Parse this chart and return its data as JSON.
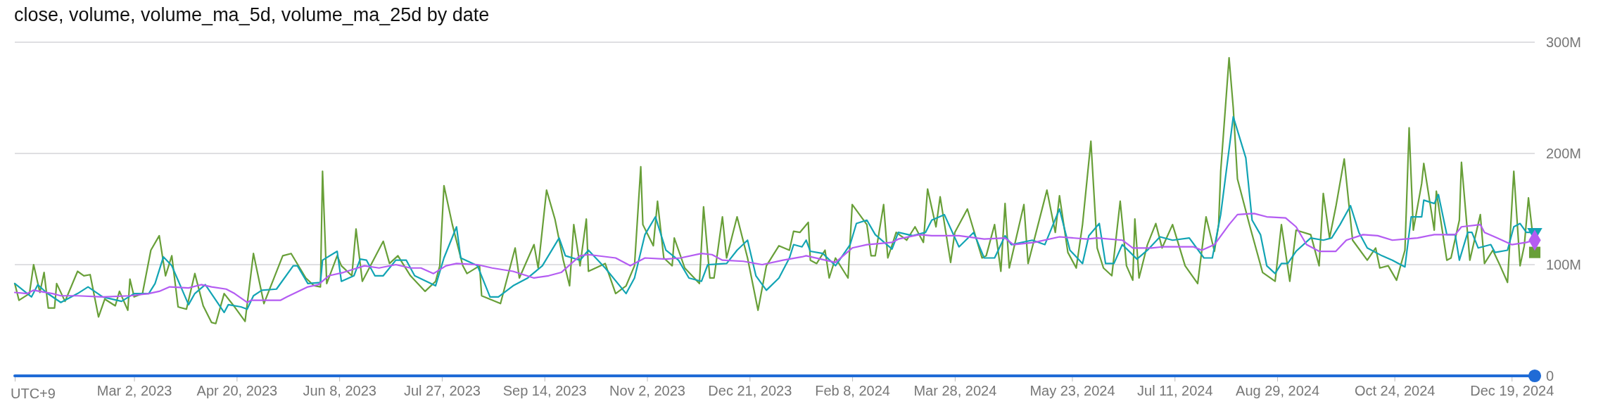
{
  "chart_data": {
    "type": "line",
    "title": "close, volume, volume_ma_5d, volume_ma_25d by date",
    "annotations": [
      "UTC+9"
    ],
    "xlim": [
      "2023-01-04",
      "2024-12-30"
    ],
    "xticks": [
      {
        "value": "2023-03-02",
        "label": "Mar 2, 2023"
      },
      {
        "value": "2023-04-20",
        "label": "Apr 20, 2023"
      },
      {
        "value": "2023-06-08",
        "label": "Jun 8, 2023"
      },
      {
        "value": "2023-07-27",
        "label": "Jul 27, 2023"
      },
      {
        "value": "2023-09-14",
        "label": "Sep 14, 2023"
      },
      {
        "value": "2023-11-02",
        "label": "Nov 2, 2023"
      },
      {
        "value": "2023-12-21",
        "label": "Dec 21, 2023"
      },
      {
        "value": "2024-02-08",
        "label": "Feb 8, 2024"
      },
      {
        "value": "2024-03-28",
        "label": "Mar 28, 2024"
      },
      {
        "value": "2024-05-23",
        "label": "May 23, 2024"
      },
      {
        "value": "2024-07-11",
        "label": "Jul 11, 2024"
      },
      {
        "value": "2024-08-29",
        "label": "Aug 29, 2024"
      },
      {
        "value": "2024-10-24",
        "label": "Oct 24, 2024"
      },
      {
        "value": "2024-12-19",
        "label": "Dec 19, 2024"
      }
    ],
    "ylim": [
      0,
      300
    ],
    "yticks": [
      0,
      {
        "value": 100,
        "label": "100M"
      },
      {
        "value": 200,
        "label": "200M"
      },
      {
        "value": 300,
        "label": "300M"
      }
    ],
    "grid": "y",
    "legend": false,
    "series": [
      {
        "color": "#689f38",
        "x": [
          "2023-01-04",
          "2023-01-06",
          "2023-01-11",
          "2023-01-13",
          "2023-01-16",
          "2023-01-18",
          "2023-01-20",
          "2023-01-23",
          "2023-01-24",
          "2023-01-28",
          "2023-02-03",
          "2023-02-06",
          "2023-02-09",
          "2023-02-13",
          "2023-02-16",
          "2023-02-21",
          "2023-02-23",
          "2023-02-27",
          "2023-02-28",
          "2023-03-02",
          "2023-03-06",
          "2023-03-10",
          "2023-03-14",
          "2023-03-17",
          "2023-03-20",
          "2023-03-23",
          "2023-03-27",
          "2023-03-31",
          "2023-04-04",
          "2023-04-08",
          "2023-04-10",
          "2023-04-14",
          "2023-04-19",
          "2023-04-24",
          "2023-04-28",
          "2023-05-03",
          "2023-05-12",
          "2023-05-16",
          "2023-05-23",
          "2023-05-27",
          "2023-05-30",
          "2023-05-31",
          "2023-06-02",
          "2023-06-07",
          "2023-06-09",
          "2023-06-14",
          "2023-06-16",
          "2023-06-19",
          "2023-06-29",
          "2023-07-02",
          "2023-07-06",
          "2023-07-12",
          "2023-07-19",
          "2023-07-24",
          "2023-07-26",
          "2023-07-28",
          "2023-08-01",
          "2023-08-06",
          "2023-08-08",
          "2023-08-14",
          "2023-08-15",
          "2023-08-24",
          "2023-08-31",
          "2023-09-02",
          "2023-09-09",
          "2023-09-11",
          "2023-09-15",
          "2023-09-19",
          "2023-09-23",
          "2023-09-26",
          "2023-09-28",
          "2023-10-01",
          "2023-10-04",
          "2023-10-05",
          "2023-10-13",
          "2023-10-18",
          "2023-10-23",
          "2023-10-27",
          "2023-10-30",
          "2023-10-31",
          "2023-11-05",
          "2023-11-07",
          "2023-11-10",
          "2023-11-14",
          "2023-11-15",
          "2023-11-20",
          "2023-11-27",
          "2023-11-29",
          "2023-12-02",
          "2023-12-04",
          "2023-12-08",
          "2023-12-10",
          "2023-12-15",
          "2023-12-20",
          "2023-12-25",
          "2023-12-29",
          "2024-01-04",
          "2024-01-09",
          "2024-01-11",
          "2024-01-14",
          "2024-01-18",
          "2024-01-19",
          "2024-01-22",
          "2024-01-26",
          "2024-01-28",
          "2024-01-31",
          "2024-02-06",
          "2024-02-08",
          "2024-02-15",
          "2024-02-17",
          "2024-02-19",
          "2024-02-23",
          "2024-02-25",
          "2024-02-29",
          "2024-03-05",
          "2024-03-09",
          "2024-03-13",
          "2024-03-15",
          "2024-03-19",
          "2024-03-21",
          "2024-03-26",
          "2024-03-28",
          "2024-04-03",
          "2024-04-10",
          "2024-04-12",
          "2024-04-16",
          "2024-04-19",
          "2024-04-21",
          "2024-04-23",
          "2024-04-30",
          "2024-05-02",
          "2024-05-11",
          "2024-05-15",
          "2024-05-17",
          "2024-05-21",
          "2024-05-25",
          "2024-05-28",
          "2024-06-01",
          "2024-06-04",
          "2024-06-07",
          "2024-06-11",
          "2024-06-15",
          "2024-06-18",
          "2024-06-21",
          "2024-06-22",
          "2024-06-24",
          "2024-06-28",
          "2024-07-02",
          "2024-07-05",
          "2024-07-10",
          "2024-07-16",
          "2024-07-22",
          "2024-07-26",
          "2024-07-30",
          "2024-08-01",
          "2024-08-02",
          "2024-08-06",
          "2024-08-08",
          "2024-08-10",
          "2024-08-16",
          "2024-08-22",
          "2024-08-28",
          "2024-08-31",
          "2024-09-04",
          "2024-09-07",
          "2024-09-14",
          "2024-09-18",
          "2024-09-20",
          "2024-09-23",
          "2024-09-26",
          "2024-09-30",
          "2024-10-04",
          "2024-10-11",
          "2024-10-15",
          "2024-10-17",
          "2024-10-21",
          "2024-10-25",
          "2024-10-29",
          "2024-10-31",
          "2024-11-02",
          "2024-11-06",
          "2024-11-07",
          "2024-11-12",
          "2024-11-13",
          "2024-11-18",
          "2024-11-20",
          "2024-11-24",
          "2024-11-25",
          "2024-11-29",
          "2024-12-04",
          "2024-12-06",
          "2024-12-10",
          "2024-12-13",
          "2024-12-17",
          "2024-12-20",
          "2024-12-23",
          "2024-12-25",
          "2024-12-27",
          "2024-12-30"
        ],
        "values": [
          83,
          68,
          74,
          100,
          75,
          93,
          61,
          61,
          83,
          67,
          94,
          90,
          91,
          53,
          69,
          63,
          76,
          59,
          87,
          71,
          74,
          113,
          126,
          90,
          108,
          62,
          60,
          92,
          63,
          48,
          47,
          74,
          62,
          49,
          110,
          65,
          108,
          110,
          88,
          81,
          80,
          184,
          83,
          108,
          99,
          90,
          132,
          85,
          121,
          101,
          108,
          90,
          76,
          85,
          99,
          171,
          136,
          99,
          92,
          99,
          72,
          65,
          115,
          88,
          118,
          97,
          167,
          141,
          104,
          81,
          136,
          99,
          141,
          94,
          101,
          74,
          81,
          99,
          188,
          136,
          117,
          157,
          106,
          99,
          124,
          97,
          83,
          152,
          88,
          88,
          143,
          106,
          143,
          106,
          59,
          99,
          117,
          113,
          130,
          129,
          138,
          104,
          101,
          113,
          88,
          106,
          88,
          154,
          136,
          108,
          108,
          154,
          106,
          129,
          122,
          134,
          120,
          168,
          134,
          161,
          102,
          129,
          150,
          106,
          108,
          136,
          94,
          155,
          97,
          154,
          101,
          167,
          129,
          162,
          111,
          97,
          136,
          211,
          115,
          97,
          90,
          157,
          99,
          86,
          141,
          88,
          118,
          137,
          115,
          136,
          99,
          83,
          143,
          112,
          136,
          184,
          286,
          241,
          177,
          134,
          93,
          85,
          136,
          85,
          131,
          127,
          99,
          164,
          124,
          152,
          195,
          122,
          104,
          115,
          97,
          99,
          86,
          113,
          223,
          131,
          173,
          191,
          131,
          166,
          104,
          106,
          140,
          192,
          104,
          145,
          101,
          113,
          101,
          84,
          184,
          99,
          117,
          160,
          111
        ]
      },
      {
        "color": "#12a4b4",
        "x": [
          "2023-01-04",
          "2023-01-12",
          "2023-01-15",
          "2023-01-19",
          "2023-01-26",
          "2023-02-03",
          "2023-02-08",
          "2023-02-15",
          "2023-02-24",
          "2023-03-02",
          "2023-03-09",
          "2023-03-12",
          "2023-03-16",
          "2023-03-20",
          "2023-03-28",
          "2023-03-31",
          "2023-04-05",
          "2023-04-14",
          "2023-04-16",
          "2023-04-22",
          "2023-04-25",
          "2023-04-28",
          "2023-05-02",
          "2023-05-09",
          "2023-05-17",
          "2023-05-19",
          "2023-05-24",
          "2023-05-30",
          "2023-05-31",
          "2023-06-07",
          "2023-06-09",
          "2023-06-15",
          "2023-06-18",
          "2023-06-21",
          "2023-06-25",
          "2023-06-29",
          "2023-07-05",
          "2023-07-10",
          "2023-07-14",
          "2023-07-24",
          "2023-07-28",
          "2023-08-03",
          "2023-08-05",
          "2023-08-13",
          "2023-08-19",
          "2023-08-23",
          "2023-08-30",
          "2023-09-06",
          "2023-09-13",
          "2023-09-21",
          "2023-09-24",
          "2023-10-01",
          "2023-10-05",
          "2023-10-13",
          "2023-10-23",
          "2023-10-27",
          "2023-11-01",
          "2023-11-06",
          "2023-11-11",
          "2023-11-17",
          "2023-11-22",
          "2023-11-28",
          "2023-12-01",
          "2023-12-10",
          "2023-12-15",
          "2023-12-20",
          "2023-12-24",
          "2023-12-29",
          "2024-01-04",
          "2024-01-09",
          "2024-01-11",
          "2024-01-15",
          "2024-01-17",
          "2024-01-19",
          "2024-01-25",
          "2024-01-31",
          "2024-02-07",
          "2024-02-10",
          "2024-02-15",
          "2024-02-19",
          "2024-02-27",
          "2024-03-01",
          "2024-03-08",
          "2024-03-14",
          "2024-03-17",
          "2024-03-23",
          "2024-03-30",
          "2024-04-06",
          "2024-04-11",
          "2024-04-16",
          "2024-04-21",
          "2024-04-24",
          "2024-05-04",
          "2024-05-10",
          "2024-05-17",
          "2024-05-22",
          "2024-05-28",
          "2024-05-31",
          "2024-06-05",
          "2024-06-08",
          "2024-06-12",
          "2024-06-16",
          "2024-06-23",
          "2024-06-28",
          "2024-07-04",
          "2024-07-10",
          "2024-07-18",
          "2024-07-25",
          "2024-07-29",
          "2024-08-02",
          "2024-08-08",
          "2024-08-14",
          "2024-08-17",
          "2024-08-21",
          "2024-08-24",
          "2024-08-28",
          "2024-08-31",
          "2024-09-03",
          "2024-09-07",
          "2024-09-14",
          "2024-09-20",
          "2024-09-24",
          "2024-09-28",
          "2024-10-03",
          "2024-10-07",
          "2024-10-11",
          "2024-10-18",
          "2024-10-23",
          "2024-10-29",
          "2024-11-01",
          "2024-11-06",
          "2024-11-07",
          "2024-11-12",
          "2024-11-14",
          "2024-11-18",
          "2024-11-22",
          "2024-11-24",
          "2024-11-28",
          "2024-11-30",
          "2024-12-03",
          "2024-12-09",
          "2024-12-11",
          "2024-12-17",
          "2024-12-20",
          "2024-12-23",
          "2024-12-26",
          "2024-12-30"
        ],
        "values": [
          83,
          71,
          82,
          75,
          66,
          74,
          80,
          71,
          67,
          74,
          74,
          83,
          107,
          99,
          64,
          74,
          82,
          57,
          64,
          62,
          60,
          72,
          77,
          78,
          99,
          99,
          83,
          84,
          104,
          112,
          85,
          90,
          105,
          104,
          90,
          90,
          104,
          104,
          90,
          81,
          106,
          134,
          106,
          99,
          71,
          71,
          81,
          88,
          99,
          124,
          108,
          104,
          113,
          97,
          74,
          88,
          127,
          143,
          113,
          104,
          88,
          85,
          100,
          101,
          113,
          122,
          90,
          77,
          88,
          106,
          118,
          116,
          122,
          112,
          110,
          99,
          118,
          137,
          140,
          127,
          114,
          129,
          126,
          129,
          140,
          145,
          116,
          129,
          106,
          106,
          126,
          118,
          122,
          118,
          150,
          113,
          101,
          126,
          137,
          101,
          101,
          118,
          105,
          113,
          125,
          122,
          124,
          106,
          106,
          145,
          233,
          196,
          140,
          127,
          99,
          92,
          101,
          101,
          112,
          124,
          122,
          124,
          136,
          153,
          129,
          115,
          108,
          104,
          98,
          143,
          143,
          158,
          155,
          163,
          127,
          127,
          104,
          129,
          129,
          115,
          118,
          111,
          113,
          134,
          137,
          129,
          129
        ]
      },
      {
        "color": "#b45cf2",
        "x": [
          "2023-01-04",
          "2023-01-10",
          "2023-01-13",
          "2023-01-22",
          "2023-01-26",
          "2023-02-03",
          "2023-02-15",
          "2023-02-28",
          "2023-03-09",
          "2023-03-14",
          "2023-03-19",
          "2023-03-28",
          "2023-04-03",
          "2023-04-08",
          "2023-04-15",
          "2023-04-19",
          "2023-04-25",
          "2023-04-27",
          "2023-05-11",
          "2023-05-14",
          "2023-05-24",
          "2023-05-29",
          "2023-06-03",
          "2023-06-10",
          "2023-06-20",
          "2023-06-27",
          "2023-07-05",
          "2023-07-12",
          "2023-07-17",
          "2023-07-23",
          "2023-07-29",
          "2023-08-03",
          "2023-08-13",
          "2023-08-20",
          "2023-08-30",
          "2023-09-09",
          "2023-09-16",
          "2023-09-22",
          "2023-10-01",
          "2023-10-05",
          "2023-10-18",
          "2023-10-25",
          "2023-11-01",
          "2023-11-11",
          "2023-11-18",
          "2023-11-28",
          "2023-12-03",
          "2023-12-08",
          "2023-12-18",
          "2023-12-27",
          "2024-01-06",
          "2024-01-15",
          "2024-01-17",
          "2024-01-24",
          "2024-01-31",
          "2024-02-08",
          "2024-02-15",
          "2024-02-27",
          "2024-03-01",
          "2024-03-11",
          "2024-03-17",
          "2024-03-30",
          "2024-04-11",
          "2024-04-21",
          "2024-04-25",
          "2024-05-05",
          "2024-05-17",
          "2024-05-30",
          "2024-06-04",
          "2024-06-16",
          "2024-06-21",
          "2024-06-30",
          "2024-07-05",
          "2024-07-20",
          "2024-07-24",
          "2024-07-30",
          "2024-08-06",
          "2024-08-10",
          "2024-08-18",
          "2024-08-24",
          "2024-09-02",
          "2024-09-07",
          "2024-09-12",
          "2024-09-18",
          "2024-09-26",
          "2024-10-01",
          "2024-10-09",
          "2024-10-16",
          "2024-10-23",
          "2024-10-29",
          "2024-11-04",
          "2024-11-12",
          "2024-11-22",
          "2024-11-25",
          "2024-12-04",
          "2024-12-06",
          "2024-12-12",
          "2024-12-19",
          "2024-12-26",
          "2024-12-30"
        ],
        "values": [
          75,
          74,
          77,
          74,
          72,
          72,
          71,
          72,
          74,
          76,
          80,
          79,
          82,
          80,
          78,
          74,
          66,
          68,
          68,
          71,
          80,
          82,
          90,
          93,
          99,
          97,
          100,
          97,
          97,
          92,
          99,
          101,
          100,
          97,
          94,
          88,
          90,
          93,
          108,
          109,
          106,
          99,
          106,
          105,
          106,
          110,
          109,
          104,
          103,
          100,
          104,
          107,
          108,
          105,
          102,
          115,
          118,
          120,
          123,
          127,
          126,
          126,
          123,
          124,
          118,
          120,
          125,
          123,
          124,
          122,
          115,
          115,
          116,
          116,
          113,
          118,
          136,
          145,
          146,
          143,
          142,
          134,
          118,
          112,
          112,
          122,
          127,
          126,
          122,
          123,
          124,
          127,
          127,
          134,
          136,
          129,
          124,
          118,
          120,
          122
        ]
      },
      {
        "color": "#1f6bd6",
        "x": [
          "2023-01-04",
          "2024-12-30"
        ],
        "values": [
          0,
          0
        ]
      }
    ]
  }
}
